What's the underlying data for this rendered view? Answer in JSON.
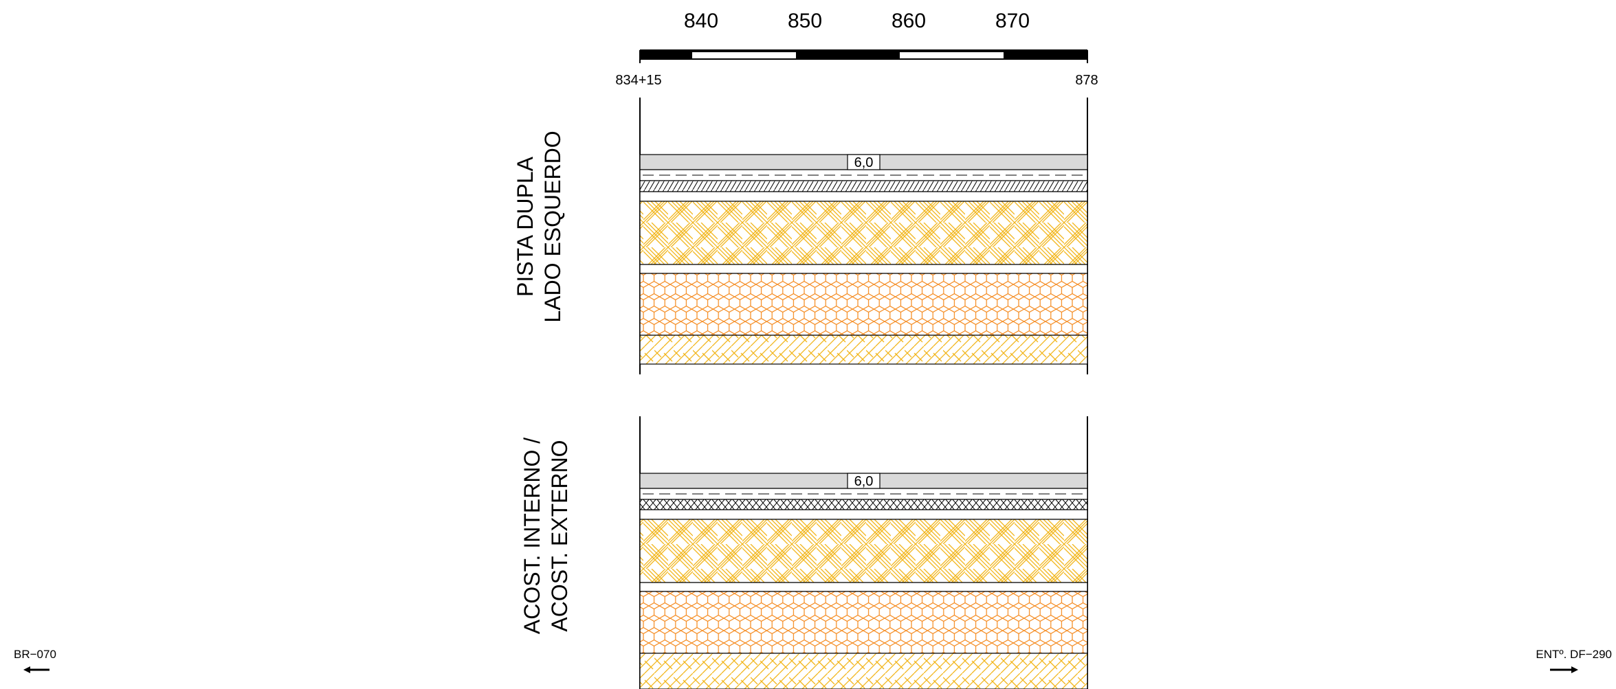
{
  "scale": {
    "tick_labels": [
      "840",
      "850",
      "860",
      "870"
    ]
  },
  "stations": {
    "start": "834+15",
    "end": "878"
  },
  "sections": [
    {
      "title_line1": "PISTA DUPLA",
      "title_line2": "LADO ESQUERDO",
      "thickness_label": "6,0"
    },
    {
      "title_line1": "ACOST. INTERNO /",
      "title_line2": "ACOST. EXTERNO",
      "thickness_label": "6,0"
    }
  ],
  "direction": {
    "left_label": "BR−070",
    "right_label": "ENTº. DF−290"
  },
  "colors": {
    "line": "#000000",
    "surface_fill": "#d9d9d9",
    "yellow_hatch": "#f2b61d",
    "orange_hatch": "#f58a1e"
  }
}
